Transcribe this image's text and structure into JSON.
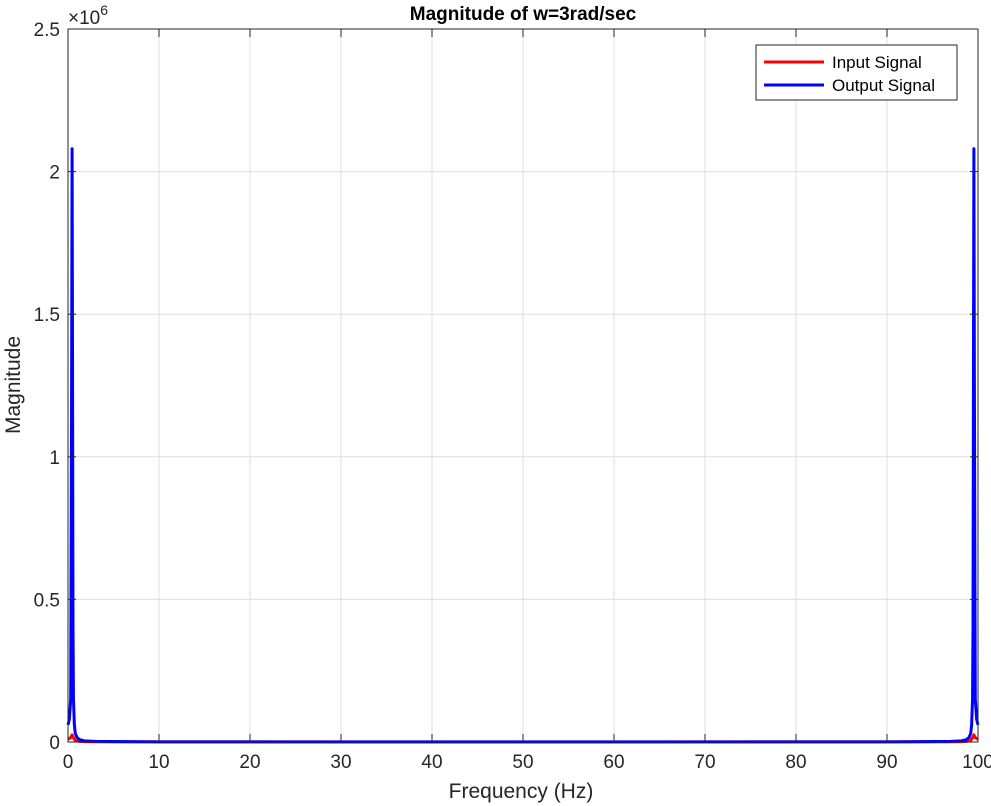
{
  "chart_data": {
    "type": "line",
    "title": "Magnitude of w=3rad/sec",
    "xlabel": "Frequency (Hz)",
    "ylabel": "Magnitude",
    "xlim": [
      0,
      100
    ],
    "ylim": [
      0,
      2500000
    ],
    "x_ticks": [
      0,
      10,
      20,
      30,
      40,
      50,
      60,
      70,
      80,
      90,
      100
    ],
    "y_ticks": [
      0,
      500000,
      1000000,
      1500000,
      2000000,
      2500000
    ],
    "y_tick_labels": [
      "0",
      "0.5",
      "1",
      "1.5",
      "2",
      "2.5"
    ],
    "y_exponent_label": {
      "base": "×10",
      "exp": "6"
    },
    "grid": true,
    "legend_position": "top-right",
    "series": [
      {
        "name": "Input Signal",
        "color": "#ff0000",
        "x": [
          0,
          0.3,
          0.45,
          0.6,
          0.8,
          1.2,
          2,
          5,
          50,
          95,
          98,
          98.8,
          99.2,
          99.4,
          99.55,
          99.7,
          100
        ],
        "y": [
          10000,
          15000,
          25000,
          15000,
          5000,
          2000,
          800,
          300,
          100,
          300,
          800,
          2000,
          5000,
          15000,
          25000,
          15000,
          10000
        ]
      },
      {
        "name": "Output Signal",
        "color": "#0000ff",
        "x": [
          0,
          0.15,
          0.3,
          0.4,
          0.45,
          0.5,
          0.55,
          0.6,
          0.7,
          0.8,
          1.0,
          1.3,
          1.8,
          3,
          10,
          50,
          90,
          97,
          98.2,
          98.7,
          99.0,
          99.2,
          99.3,
          99.4,
          99.45,
          99.5,
          99.55,
          99.6,
          99.7,
          99.85,
          100
        ],
        "y": [
          60000,
          80000,
          150000,
          1300000,
          2080000,
          1300000,
          400000,
          150000,
          60000,
          30000,
          15000,
          8000,
          4000,
          2000,
          600,
          400,
          600,
          2000,
          4000,
          8000,
          15000,
          30000,
          60000,
          150000,
          400000,
          1300000,
          2080000,
          1300000,
          150000,
          80000,
          60000
        ]
      }
    ]
  }
}
